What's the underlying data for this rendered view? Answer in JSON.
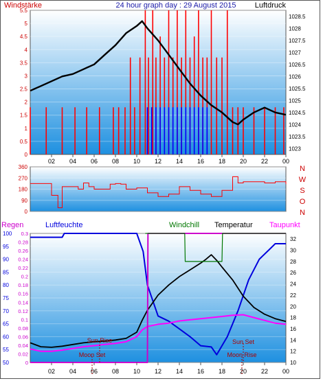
{
  "header": {
    "left_label": "Windstärke",
    "title": "24 hour graph day : 29 August 2015",
    "right_label": "Luftdruck"
  },
  "panel2": {
    "compass_letters": [
      "N",
      "W",
      "S",
      "O",
      "N"
    ]
  },
  "panel3": {
    "labels": {
      "regen": "Regen",
      "luftfeuchte": "Luftfeuchte",
      "windchill": "Windchill",
      "temperatur": "Temperatur",
      "taupunkt": "Taupunkt"
    },
    "annotations": {
      "sun_rise": "Sun Rise",
      "moon_set": "Moon Set",
      "sun_set": "Sun Set",
      "moon_rise": "Moon Rise"
    }
  },
  "colors": {
    "frame": "#555555",
    "title": "#1a1aa8",
    "wind_label": "#cc0000",
    "sky_top": "#ffffff",
    "sky_bottom": "#1e90e0",
    "pressure": "#000000",
    "wind_gust": "#ff0000",
    "wind_mean": "#0000ff",
    "regen": "#cc00cc",
    "luftfeuchte": "#0000dd",
    "windchill": "#007700",
    "temperatur": "#000000",
    "taupunkt": "#ff00ff",
    "annotation": "#aa0000"
  },
  "chart_data": [
    {
      "type": "line",
      "title": "24 hour graph day : 29 August 2015",
      "x_ticks": [
        "02",
        "04",
        "06",
        "08",
        "10",
        "12",
        "14",
        "16",
        "18",
        "20",
        "22",
        "00"
      ],
      "x_hours": [
        0,
        24
      ],
      "left_axis": {
        "label": "Windstärke",
        "ticks": [
          "0",
          "0.5",
          "1",
          "1.5",
          "2",
          "2.5",
          "3",
          "3.5",
          "4",
          "4.5",
          "5",
          "5.5"
        ],
        "range": [
          0,
          5.5
        ]
      },
      "right_axis": {
        "label": "Luftdruck",
        "ticks": [
          "1023",
          "1023.5",
          "1024",
          "1024.5",
          "1025",
          "1025.5",
          "1026",
          "1026.5",
          "1027",
          "1027.5",
          "1028",
          "1028.5"
        ],
        "range": [
          1022.75,
          1028.75
        ]
      },
      "series": [
        {
          "name": "Luftdruck",
          "axis": "right",
          "x": [
            0,
            1,
            2,
            3,
            4,
            5,
            6,
            7,
            8,
            9,
            10,
            10.5,
            11,
            12,
            13,
            14,
            15,
            16,
            17,
            18,
            19,
            19.5,
            20,
            21,
            22,
            23,
            24
          ],
          "y": [
            1025.4,
            1025.6,
            1025.8,
            1026.0,
            1026.1,
            1026.3,
            1026.5,
            1026.9,
            1027.3,
            1027.8,
            1028.1,
            1028.3,
            1028.0,
            1027.5,
            1026.9,
            1026.3,
            1025.7,
            1025.2,
            1024.8,
            1024.5,
            1024.1,
            1024.0,
            1024.2,
            1024.5,
            1024.7,
            1024.5,
            1024.4
          ]
        },
        {
          "name": "Wind gust (red bars)",
          "axis": "left",
          "x": [
            0,
            1.5,
            3,
            4.2,
            5.3,
            6.5,
            7.8,
            8.3,
            8.9,
            9.4,
            9.8,
            10.3,
            10.8,
            11.1,
            11.5,
            11.8,
            12.2,
            12.6,
            13.0,
            13.4,
            13.8,
            14.2,
            14.6,
            15.0,
            15.4,
            15.8,
            16.2,
            16.6,
            17.0,
            17.5,
            18.0,
            18.5,
            19.0,
            19.5,
            20.0,
            21.0,
            22.0,
            23.0,
            23.8
          ],
          "y": [
            1.8,
            1.8,
            1.8,
            1.8,
            1.8,
            1.8,
            1.8,
            1.8,
            1.8,
            3.7,
            1.8,
            3.7,
            5.5,
            3.7,
            5.5,
            3.7,
            4.5,
            3.7,
            5.5,
            3.7,
            5.5,
            3.7,
            5.5,
            3.7,
            4.5,
            5.5,
            3.7,
            3.7,
            5.5,
            3.7,
            3.7,
            5.5,
            1.8,
            1.8,
            1.8,
            1.8,
            1.8,
            1.8,
            1.8
          ]
        },
        {
          "name": "Wind mean (blue bars)",
          "axis": "left",
          "x": [
            11.0,
            11.4,
            11.8,
            12.2,
            12.6,
            13.0,
            13.4,
            13.8,
            14.2,
            14.6,
            15.0,
            15.4,
            15.8,
            16.2,
            16.6
          ],
          "y": [
            1.8,
            1.8,
            1.8,
            1.8,
            1.8,
            1.8,
            1.8,
            1.8,
            1.8,
            1.8,
            1.8,
            1.8,
            1.8,
            1.8,
            1.8
          ]
        }
      ]
    },
    {
      "type": "line",
      "left_axis": {
        "ticks": [
          "0",
          "90",
          "180",
          "270",
          "360"
        ],
        "range": [
          0,
          360
        ]
      },
      "right_labels": [
        "N",
        "W",
        "S",
        "O",
        "N"
      ],
      "series": [
        {
          "name": "Windrichtung",
          "axis": "left",
          "x": [
            0,
            1.8,
            2.0,
            2.6,
            3.0,
            4.0,
            4.5,
            5.0,
            5.5,
            6.0,
            7.0,
            7.5,
            8.0,
            8.5,
            9.0,
            10.0,
            11.0,
            12.0,
            13.0,
            14.0,
            15.0,
            16.0,
            17.0,
            18.0,
            19.0,
            19.5,
            20.0,
            21.0,
            22.0,
            23.0,
            24.0
          ],
          "y": [
            225,
            225,
            130,
            30,
            200,
            200,
            180,
            230,
            200,
            180,
            180,
            220,
            225,
            220,
            180,
            190,
            150,
            120,
            140,
            200,
            170,
            140,
            120,
            170,
            280,
            230,
            240,
            240,
            230,
            240,
            220
          ]
        }
      ]
    },
    {
      "type": "line",
      "x_ticks": [
        "02",
        "04",
        "06",
        "08",
        "10",
        "12",
        "14",
        "16",
        "18",
        "20",
        "22",
        "00"
      ],
      "x_hours": [
        0,
        24
      ],
      "left_axis_luftfeuchte": {
        "label": "Luftfeuchte",
        "ticks": [
          "50",
          "55",
          "60",
          "65",
          "70",
          "75",
          "80",
          "85",
          "90",
          "95",
          "100"
        ],
        "range": [
          50,
          100
        ]
      },
      "left_axis_regen": {
        "label": "Regen",
        "ticks": [
          "0",
          "0.02",
          "0.04",
          "0.06",
          "0.08",
          "0.1",
          "0.12",
          "0.14",
          "0.16",
          "0.18",
          "0.2",
          "0.22",
          "0.24",
          "0.26",
          "0.28",
          "0.3"
        ],
        "range": [
          0,
          0.3
        ]
      },
      "right_axis": {
        "label": "Temperatur",
        "ticks": [
          "10",
          "12",
          "14",
          "16",
          "18",
          "20",
          "22",
          "24",
          "26",
          "28",
          "30",
          "32"
        ],
        "range": [
          10,
          33
        ]
      },
      "series": [
        {
          "name": "Luftfeuchte",
          "axis": "luftfeuchte",
          "x": [
            0,
            3,
            3.2,
            6,
            6.2,
            10,
            10.6,
            11.0,
            12.0,
            13.0,
            14.0,
            15.0,
            16.0,
            17.0,
            17.5,
            18.5,
            19.5,
            20.5,
            21.5,
            22.5,
            23.0,
            24.0
          ],
          "y": [
            98.5,
            98.5,
            100,
            100,
            100,
            100,
            93,
            80,
            68,
            66,
            63,
            60,
            56.5,
            56,
            53,
            60,
            70,
            82,
            90,
            94,
            96,
            96
          ]
        },
        {
          "name": "Temperatur",
          "axis": "temp",
          "x": [
            0,
            1,
            2,
            3,
            4,
            5,
            6,
            7,
            8,
            9,
            10,
            10.5,
            11,
            12,
            13,
            14,
            15,
            16,
            16.5,
            17,
            17.5,
            18,
            19,
            20,
            21,
            22,
            23,
            24
          ],
          "y": [
            13.5,
            12.8,
            12.7,
            12.9,
            13.2,
            13.5,
            13.7,
            13.8,
            14.0,
            14.3,
            15.4,
            17.5,
            19.3,
            22.0,
            23.8,
            25.3,
            26.5,
            27.7,
            28.4,
            29.2,
            28.2,
            27.0,
            24.7,
            21.8,
            19.8,
            18.6,
            17.8,
            17.3
          ]
        },
        {
          "name": "Taupunkt",
          "axis": "temp",
          "x": [
            0,
            1,
            2,
            3,
            4,
            5,
            6,
            7,
            8,
            9,
            10,
            10.5,
            11,
            12,
            13,
            14,
            15,
            16,
            17,
            18,
            19,
            20,
            21,
            22,
            23,
            24
          ],
          "y": [
            12.4,
            12.0,
            12.0,
            12.2,
            12.5,
            12.8,
            13.0,
            13.2,
            13.4,
            13.7,
            14.6,
            15.8,
            16.4,
            16.8,
            17.0,
            17.4,
            17.6,
            17.8,
            18.0,
            18.2,
            18.4,
            18.5,
            18.0,
            17.5,
            17.0,
            16.8
          ]
        },
        {
          "name": "Regen",
          "axis": "regen",
          "x": [
            0,
            11,
            11.05,
            24
          ],
          "y": [
            0,
            0,
            0.3,
            0.3
          ]
        },
        {
          "name": "Windchill",
          "axis": "temp",
          "x": [
            10.8,
            11.0,
            14.5,
            14.55,
            18.0,
            18.05,
            24
          ],
          "y": [
            33,
            33,
            33,
            28,
            28,
            33,
            33
          ]
        }
      ]
    }
  ]
}
